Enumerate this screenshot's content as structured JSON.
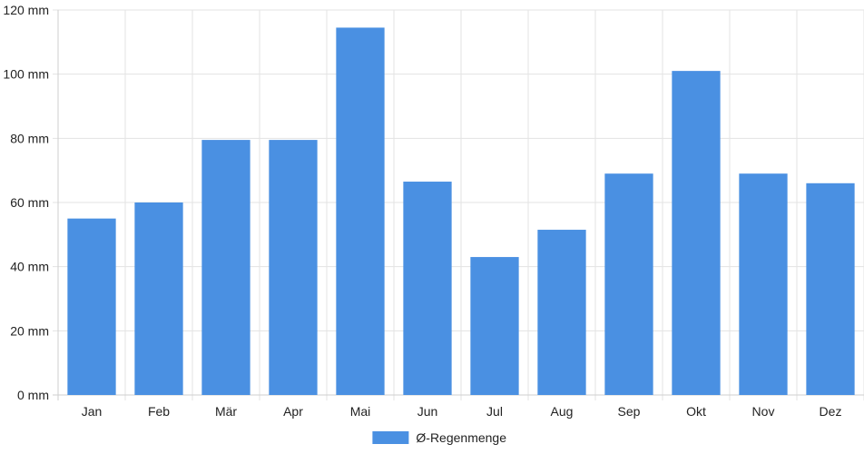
{
  "chart_data": {
    "type": "bar",
    "categories": [
      "Jan",
      "Feb",
      "Mär",
      "Apr",
      "Mai",
      "Jun",
      "Jul",
      "Aug",
      "Sep",
      "Okt",
      "Nov",
      "Dez"
    ],
    "series": [
      {
        "name": "Ø-Regenmenge",
        "values": [
          55,
          60,
          79.5,
          79.5,
          114.5,
          66.5,
          43,
          51.5,
          69,
          101,
          69,
          66
        ],
        "color": "#4a90e2"
      }
    ],
    "y_ticks": [
      "0 mm",
      "20 mm",
      "40 mm",
      "60 mm",
      "80 mm",
      "100 mm",
      "120 mm"
    ],
    "ylim": [
      0,
      120
    ],
    "grid": true,
    "legend_position": "bottom-center"
  }
}
